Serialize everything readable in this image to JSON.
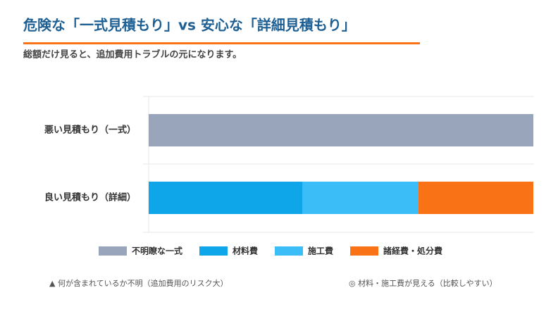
{
  "chart_data": {
    "type": "stacked-barh",
    "title": "危険な「一式見積もり」vs 安心な「詳細見積もり」",
    "subtitle": "総額だけ見ると、追加費用トラブルの元になります。",
    "categories": [
      "悪い見積もり（一式）",
      "良い見積もり（詳細）"
    ],
    "series": [
      {
        "name": "不明瞭な一式",
        "color": "#98a5ba",
        "values": [
          100,
          null
        ]
      },
      {
        "name": "材料費",
        "color": "#0ea5e9",
        "values": [
          null,
          40
        ]
      },
      {
        "name": "施工費",
        "color": "#3bbdf8",
        "values": [
          null,
          30
        ]
      },
      {
        "name": "諸経費・処分費",
        "color": "#f97316",
        "values": [
          null,
          30
        ]
      }
    ],
    "xlim": [
      0,
      100
    ],
    "annotations": [
      "▲ 何が含まれているか不明（追加費用のリスク大）",
      "◎ 材料・施工費が見える（比較しやすい）"
    ]
  }
}
